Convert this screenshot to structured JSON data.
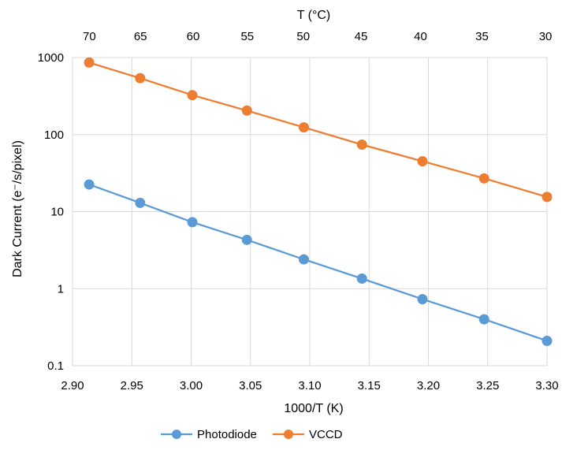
{
  "chart_data": {
    "type": "line",
    "xlabel": "1000/T (K)",
    "ylabel": "Dark Current (e⁻/s/pixel)",
    "top_axis_label": "T (°C)",
    "top_ticks": [
      "70",
      "65",
      "60",
      "55",
      "50",
      "45",
      "40",
      "35",
      "30"
    ],
    "top_tick_temps_c": [
      70,
      65,
      60,
      55,
      50,
      45,
      40,
      35,
      30
    ],
    "xlim": [
      2.9,
      3.3
    ],
    "x_ticks": [
      "2.90",
      "2.95",
      "3.00",
      "3.05",
      "3.10",
      "3.15",
      "3.20",
      "3.25",
      "3.30"
    ],
    "y_scale": "log",
    "ylim": [
      0.1,
      1000
    ],
    "y_ticks": [
      "0.1",
      "1",
      "10",
      "100",
      "1000"
    ],
    "grid": true,
    "legend_position": "bottom",
    "x": [
      2.914,
      2.957,
      3.001,
      3.047,
      3.095,
      3.144,
      3.195,
      3.247,
      3.3
    ],
    "series": [
      {
        "name": "Photodiode",
        "color": "#5B9BD5",
        "values": [
          22.5,
          13.0,
          7.3,
          4.3,
          2.4,
          1.35,
          0.73,
          0.4,
          0.21
        ]
      },
      {
        "name": "VCCD",
        "color": "#ED7D31",
        "values": [
          860,
          540,
          325,
          205,
          124,
          74,
          45,
          27,
          15.5
        ]
      }
    ]
  }
}
